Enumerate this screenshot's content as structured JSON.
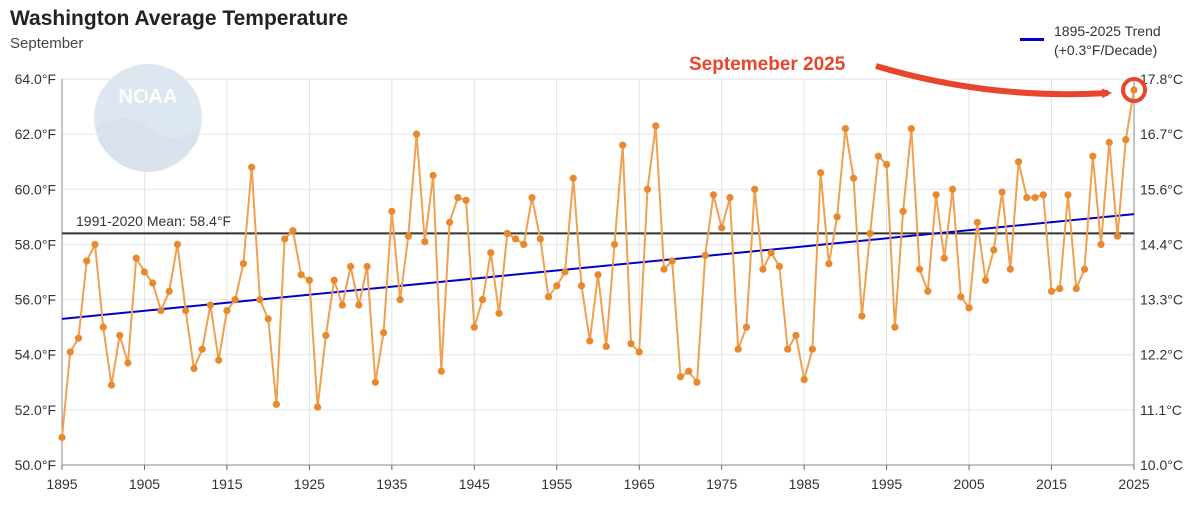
{
  "title": "Washington Average Temperature",
  "subtitle": "September",
  "legend": {
    "line1": "1895-2025 Trend",
    "line2": "(+0.3°F/Decade)"
  },
  "colors": {
    "data": "#f0a050",
    "point": "#e8892e",
    "trend": "#0000cc",
    "mean": "#333333",
    "annotation": "#e8452c"
  },
  "logo": {
    "text": "NOAA"
  },
  "annotation": {
    "text": "Septemeber 2025"
  },
  "mean_label": "1991-2020 Mean: 58.4°F",
  "chart_data": {
    "type": "line",
    "xlim": [
      1895,
      2025
    ],
    "ylim": [
      50,
      64
    ],
    "x_ticks": [
      "1895",
      "1905",
      "1915",
      "1925",
      "1935",
      "1945",
      "1955",
      "1965",
      "1975",
      "1985",
      "1995",
      "2005",
      "2015",
      "2025"
    ],
    "y_ticks_left": [
      "50.0°F",
      "52.0°F",
      "54.0°F",
      "56.0°F",
      "58.0°F",
      "60.0°F",
      "62.0°F",
      "64.0°F"
    ],
    "y_ticks_right": [
      "10.0°C",
      "11.1°C",
      "12.2°C",
      "13.3°C",
      "14.4°C",
      "15.6°C",
      "16.7°C",
      "17.8°C"
    ],
    "grid": true,
    "mean": 58.4,
    "trend": {
      "start": [
        1895,
        55.3
      ],
      "end": [
        2025,
        59.1
      ]
    },
    "series": [
      {
        "x": [
          1895,
          1896,
          1897,
          1898,
          1899,
          1900,
          1901,
          1902,
          1903,
          1904,
          1905,
          1906,
          1907,
          1908,
          1909,
          1910,
          1911,
          1912,
          1913,
          1914,
          1915,
          1916,
          1917,
          1918,
          1919,
          1920,
          1921,
          1922,
          1923,
          1924,
          1925,
          1926,
          1927,
          1928,
          1929,
          1930,
          1931,
          1932,
          1933,
          1934,
          1935,
          1936,
          1937,
          1938,
          1939,
          1940,
          1941,
          1942,
          1943,
          1944,
          1945,
          1946,
          1947,
          1948,
          1949,
          1950,
          1951,
          1952,
          1953,
          1954,
          1955,
          1956,
          1957,
          1958,
          1959,
          1960,
          1961,
          1962,
          1963,
          1964,
          1965,
          1966,
          1967,
          1968,
          1969,
          1970,
          1971,
          1972,
          1973,
          1974,
          1975,
          1976,
          1977,
          1978,
          1979,
          1980,
          1981,
          1982,
          1983,
          1984,
          1985,
          1986,
          1987,
          1988,
          1989,
          1990,
          1991,
          1992,
          1993,
          1994,
          1995,
          1996,
          1997,
          1998,
          1999,
          2000,
          2001,
          2002,
          2003,
          2004,
          2005,
          2006,
          2007,
          2008,
          2009,
          2010,
          2011,
          2012,
          2013,
          2014,
          2015,
          2016,
          2017,
          2018,
          2019,
          2020,
          2021,
          2022,
          2023,
          2024,
          2025
        ],
        "values": [
          51.0,
          54.1,
          54.6,
          57.4,
          58.0,
          55.0,
          52.9,
          54.7,
          53.7,
          57.5,
          57.0,
          56.6,
          55.6,
          56.3,
          58.0,
          55.6,
          53.5,
          54.2,
          55.8,
          53.8,
          55.6,
          56.0,
          57.3,
          60.8,
          56.0,
          55.3,
          52.2,
          58.2,
          58.5,
          56.9,
          56.7,
          52.1,
          54.7,
          56.7,
          55.8,
          57.2,
          55.8,
          57.2,
          53.0,
          54.8,
          59.2,
          56.0,
          58.3,
          62.0,
          58.1,
          60.5,
          53.4,
          58.8,
          59.7,
          59.6,
          55.0,
          56.0,
          57.7,
          55.5,
          58.4,
          58.2,
          58.0,
          59.7,
          58.2,
          56.1,
          56.5,
          57.0,
          60.4,
          56.5,
          54.5,
          56.9,
          54.3,
          58.0,
          61.6,
          54.4,
          54.1,
          60.0,
          62.3,
          57.1,
          57.4,
          53.2,
          53.4,
          53.0,
          57.6,
          59.8,
          58.6,
          59.7,
          54.2,
          55.0,
          60.0,
          57.1,
          57.7,
          57.2,
          54.2,
          54.7,
          53.1,
          54.2,
          60.6,
          57.3,
          59.0,
          62.2,
          60.4,
          55.4,
          58.4,
          61.2,
          60.9,
          55.0,
          59.2,
          62.2,
          57.1,
          56.3,
          59.8,
          57.5,
          60.0,
          56.1,
          55.7,
          58.8,
          56.7,
          57.8,
          59.9,
          57.1,
          61.0,
          59.7,
          59.7,
          59.8,
          56.3,
          56.4,
          59.8,
          56.4,
          57.1,
          61.2,
          58.0,
          61.7,
          58.3,
          61.8,
          63.6
        ]
      }
    ]
  }
}
